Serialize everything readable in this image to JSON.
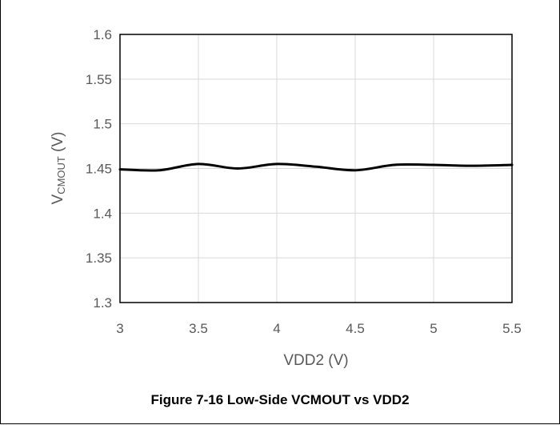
{
  "caption": "Figure 7-16 Low-Side VCMOUT vs VDD2",
  "chart_data": {
    "type": "line",
    "title": "",
    "xlabel": "VDD2 (V)",
    "ylabel_main": "V",
    "ylabel_sub": "CMOUT",
    "ylabel_suffix": " (V)",
    "xlim": [
      3,
      5.5
    ],
    "ylim": [
      1.3,
      1.6
    ],
    "x_ticks": [
      "3",
      "3.5",
      "4",
      "4.5",
      "5",
      "5.5"
    ],
    "y_ticks": [
      "1.3",
      "1.35",
      "1.4",
      "1.45",
      "1.5",
      "1.55",
      "1.6"
    ],
    "grid": true,
    "series": [
      {
        "color": "#000000",
        "x": [
          3.0,
          3.25,
          3.5,
          3.75,
          4.0,
          4.25,
          4.5,
          4.75,
          5.0,
          5.25,
          5.5
        ],
        "y": [
          1.449,
          1.448,
          1.455,
          1.45,
          1.455,
          1.452,
          1.448,
          1.454,
          1.454,
          1.453,
          1.454
        ]
      }
    ]
  }
}
